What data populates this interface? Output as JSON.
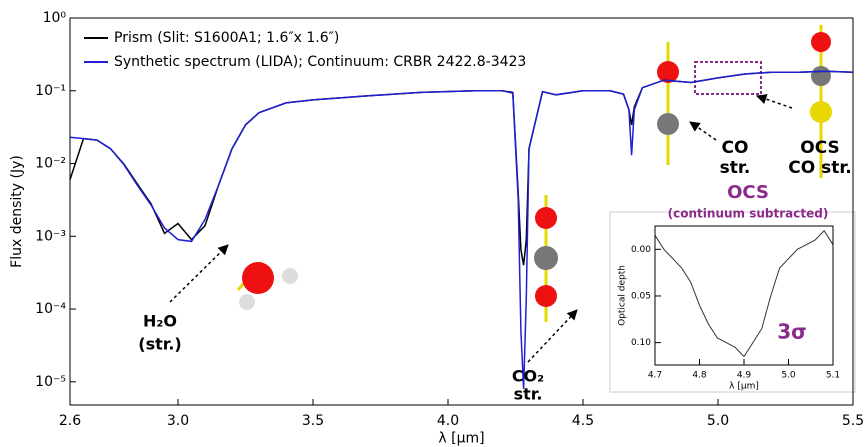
{
  "chart_data": [
    {
      "type": "line",
      "xlabel": "λ [µm]",
      "ylabel": "Flux density (Jy)",
      "log_scale": true,
      "legend": "upper left",
      "x": [
        2.6,
        2.65,
        2.7,
        2.75,
        2.8,
        2.85,
        2.9,
        2.95,
        3.0,
        3.05,
        3.1,
        3.15,
        3.2,
        3.25,
        3.3,
        3.4,
        3.5,
        3.7,
        3.9,
        4.1,
        4.2,
        4.24,
        4.26,
        4.27,
        4.28,
        4.29,
        4.3,
        4.35,
        4.4,
        4.5,
        4.6,
        4.65,
        4.67,
        4.68,
        4.69,
        4.72,
        4.8,
        4.9,
        5.0,
        5.1,
        5.2,
        5.3,
        5.4,
        5.5
      ],
      "series": [
        {
          "name": "Prism (Slit: S1600A1; 1.6″x 1.6″)",
          "color": "#000000",
          "values": [
            0.006,
            0.022,
            0.021,
            0.016,
            0.0098,
            0.0052,
            0.0028,
            0.0011,
            0.0015,
            0.0009,
            0.0014,
            0.005,
            0.016,
            0.034,
            0.05,
            0.068,
            0.075,
            0.085,
            0.095,
            0.1,
            0.1,
            0.095,
            0.004,
            0.00066,
            0.0004,
            0.0009,
            0.016,
            0.097,
            0.088,
            0.1,
            0.1,
            0.09,
            0.055,
            0.034,
            0.06,
            0.11,
            0.14,
            0.13,
            0.15,
            0.17,
            0.18,
            0.18,
            0.185,
            0.18
          ]
        },
        {
          "name": "Synthetic spectrum (LIDA); Continuum: CRBR 2422.8-3423",
          "color": "#1f1fd6",
          "values": [
            0.023,
            0.022,
            0.021,
            0.016,
            0.0096,
            0.005,
            0.0027,
            0.0013,
            0.0009,
            0.00085,
            0.0017,
            0.005,
            0.016,
            0.034,
            0.05,
            0.068,
            0.075,
            0.085,
            0.095,
            0.1,
            0.1,
            0.093,
            0.0032,
            5e-05,
            8e-06,
            0.00014,
            0.016,
            0.097,
            0.088,
            0.1,
            0.1,
            0.09,
            0.055,
            0.013,
            0.055,
            0.11,
            0.14,
            0.13,
            0.15,
            0.17,
            0.18,
            0.18,
            0.185,
            0.18
          ]
        }
      ],
      "xlim": [
        2.6,
        5.5
      ],
      "xticks": [
        2.6,
        {
          "value": 3,
          "label": "3.0"
        },
        3.5,
        {
          "value": 4,
          "label": "4.0"
        },
        4.5,
        {
          "value": 5,
          "label": "5.0"
        },
        5.5
      ],
      "ylim": [
        4.8e-06,
        1
      ],
      "yticks": [
        {
          "value": 1,
          "label": "10⁰"
        },
        {
          "value": 0.1,
          "label": "10⁻¹"
        },
        {
          "value": 0.01,
          "label": "10⁻²"
        },
        {
          "value": 0.001,
          "label": "10⁻³"
        },
        {
          "value": 0.0001,
          "label": "10⁻⁴"
        },
        {
          "value": 1e-05,
          "label": "10⁻⁵"
        }
      ],
      "annotations": [
        "H₂O",
        "(str.)",
        "CO₂",
        "str.",
        "CO",
        "str.",
        "OCS",
        "CO str.",
        "OCS",
        "(continuum subtracted)",
        "3σ"
      ]
    },
    {
      "type": "line",
      "xlabel": "λ [µm]",
      "ylabel": "Optical depth",
      "y_inverted": true,
      "x": [
        4.7,
        4.72,
        4.74,
        4.76,
        4.78,
        4.8,
        4.82,
        4.84,
        4.86,
        4.88,
        4.9,
        4.92,
        4.94,
        4.96,
        4.98,
        5.0,
        5.02,
        5.04,
        5.06,
        5.08,
        5.1
      ],
      "series": [
        {
          "color": "#333333",
          "values": [
            -0.015,
            0.0,
            0.01,
            0.02,
            0.035,
            0.06,
            0.08,
            0.095,
            0.1,
            0.105,
            0.115,
            0.1,
            0.085,
            0.05,
            0.02,
            0.01,
            0.0,
            -0.005,
            -0.01,
            -0.02,
            -0.005
          ]
        }
      ],
      "xlim": [
        4.7,
        5.1
      ],
      "xticks": [
        4.7,
        4.8,
        4.9,
        {
          "value": 5,
          "label": "5.0"
        },
        5.1
      ],
      "ylim": [
        -0.025,
        0.124
      ],
      "yticks": [
        {
          "value": 0,
          "label": "0.00"
        },
        0.05,
        {
          "value": 0.1,
          "label": "0.10"
        }
      ]
    }
  ]
}
